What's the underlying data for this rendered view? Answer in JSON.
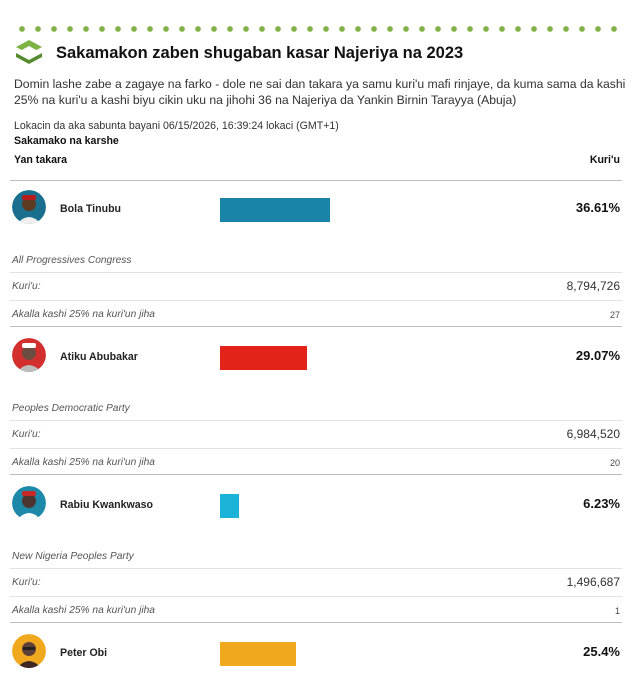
{
  "header": {
    "title": "Sakamakon zaben shugaban kasar Najeriya na 2023",
    "description": "Domin lashe zabe a zagaye na farko - dole ne sai dan takara ya samu kuri'u mafi rinjaye, da kuma sama da kashi 25% na kuri'u a kashi biyu cikin uku na jihohi 36 na Najeriya da Yankin Birnin Tarayya (Abuja)",
    "updated": "Lokacin da aka sabunta bayani 06/15/2026, 16:39:24 lokaci (GMT+1)",
    "subheading": "Sakamako na karshe",
    "col_left": "Yan takara",
    "col_right": "Kuri'u",
    "logo_icon": "green-diamond-logo-icon",
    "accent_color": "#7cb342"
  },
  "labels": {
    "votes": "Kuri'u:",
    "akalla": "Akalla kashi 25% na kuri'un jiha"
  },
  "candidates": [
    {
      "name": "Bola Tinubu",
      "percent": "36.61%",
      "share": 36.61,
      "party": "All Progressives Congress",
      "votes": "8,794,726",
      "states": "27",
      "color": "#1a83a8",
      "avatar_icon": "candidate-avatar-icon"
    },
    {
      "name": "Atiku Abubakar",
      "percent": "29.07%",
      "share": 29.07,
      "party": "Peoples Democratic Party",
      "votes": "6,984,520",
      "states": "20",
      "color": "#e32219",
      "avatar_icon": "candidate-avatar-icon"
    },
    {
      "name": "Rabiu Kwankwaso",
      "percent": "6.23%",
      "share": 6.23,
      "party": "New Nigeria Peoples Party",
      "votes": "1,496,687",
      "states": "1",
      "color": "#1bb4d8",
      "avatar_icon": "candidate-avatar-icon"
    },
    {
      "name": "Peter Obi",
      "percent": "25.4%",
      "share": 25.4,
      "party": "",
      "votes": "",
      "states": "",
      "color": "#f0a91e",
      "avatar_icon": "candidate-avatar-icon"
    }
  ]
}
